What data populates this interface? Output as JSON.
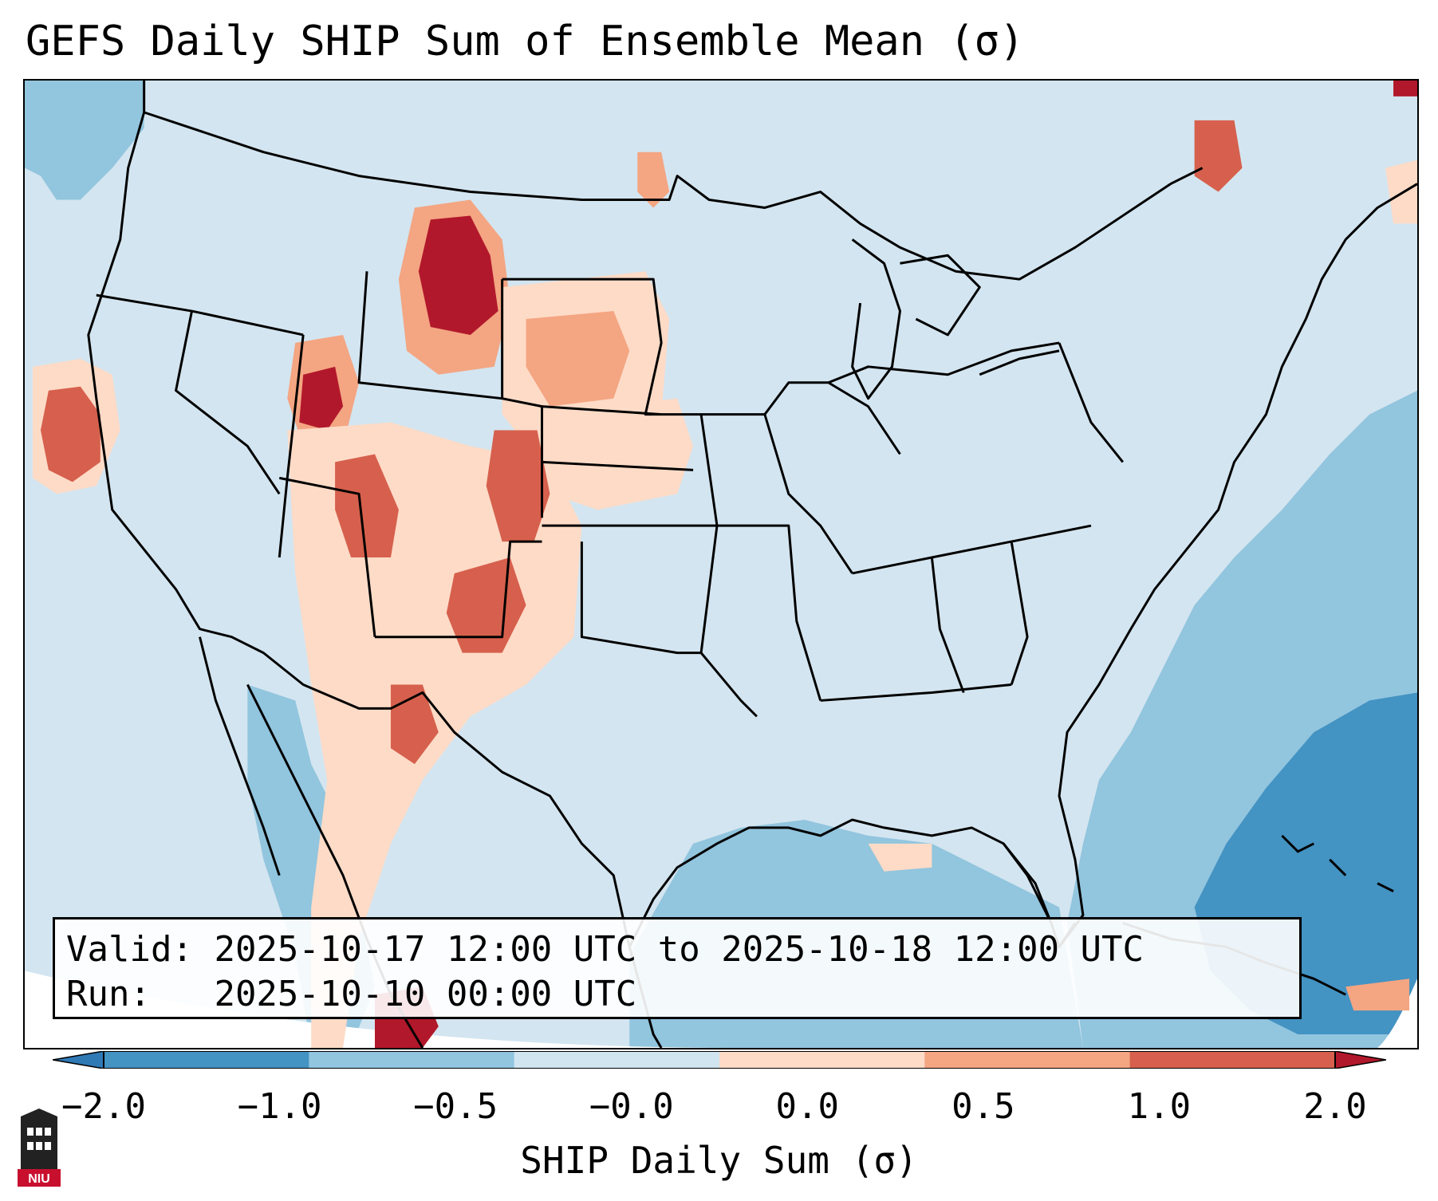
{
  "title": "GEFS Daily SHIP Sum of Ensemble Mean (σ)",
  "info": {
    "valid_label": "Valid:",
    "valid_value": "2025-10-17 12:00 UTC to 2025-10-18 12:00 UTC",
    "run_label": "Run:",
    "run_value": "2025-10-10 00:00 UTC"
  },
  "colorbar": {
    "label": "SHIP Daily Sum (σ)",
    "ticks": [
      "−2.0",
      "−1.0",
      "−0.5",
      "−0.0",
      "0.0",
      "0.5",
      "1.0",
      "2.0"
    ],
    "colors": [
      "#2f79b5",
      "#4393c3",
      "#92c5de",
      "#d1e5f0",
      "#fddbc7",
      "#f4a582",
      "#d6604d",
      "#b2182b"
    ],
    "extend": "both"
  },
  "logo": {
    "text": "NIU"
  },
  "legend_colors": {
    "strong_negative": "#4393c3",
    "negative": "#92c5de",
    "neutral_negative": "#d1e5f0",
    "neutral_positive": "#fddbc7",
    "positive": "#f4a582",
    "strong_positive": "#d6604d",
    "extreme_positive": "#b2182b"
  }
}
